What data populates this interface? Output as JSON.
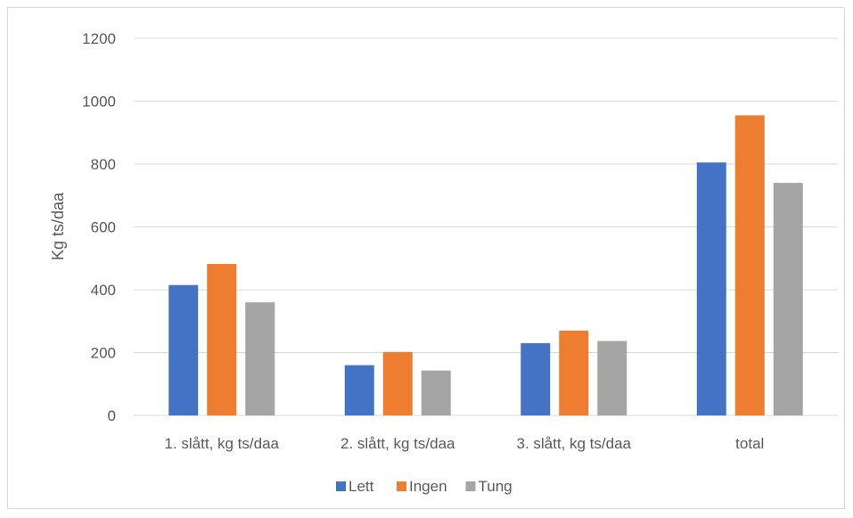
{
  "chart_data": {
    "type": "bar",
    "title": "",
    "xlabel": "",
    "ylabel": "Kg ts/daa",
    "ylim": [
      0,
      1200
    ],
    "yticks": [
      0,
      200,
      400,
      600,
      800,
      1000,
      1200
    ],
    "grid": true,
    "legend_position": "bottom",
    "categories": [
      "1. slått, kg ts/daa",
      "2. slått, kg ts/daa",
      "3. slått, kg ts/daa",
      "total"
    ],
    "series": [
      {
        "name": "Lett",
        "color": "#4472C4",
        "values": [
          415,
          160,
          230,
          805
        ]
      },
      {
        "name": "Ingen",
        "color": "#ED7D31",
        "values": [
          482,
          202,
          270,
          955
        ]
      },
      {
        "name": "Tung",
        "color": "#A5A5A5",
        "values": [
          360,
          143,
          237,
          740
        ]
      }
    ]
  }
}
